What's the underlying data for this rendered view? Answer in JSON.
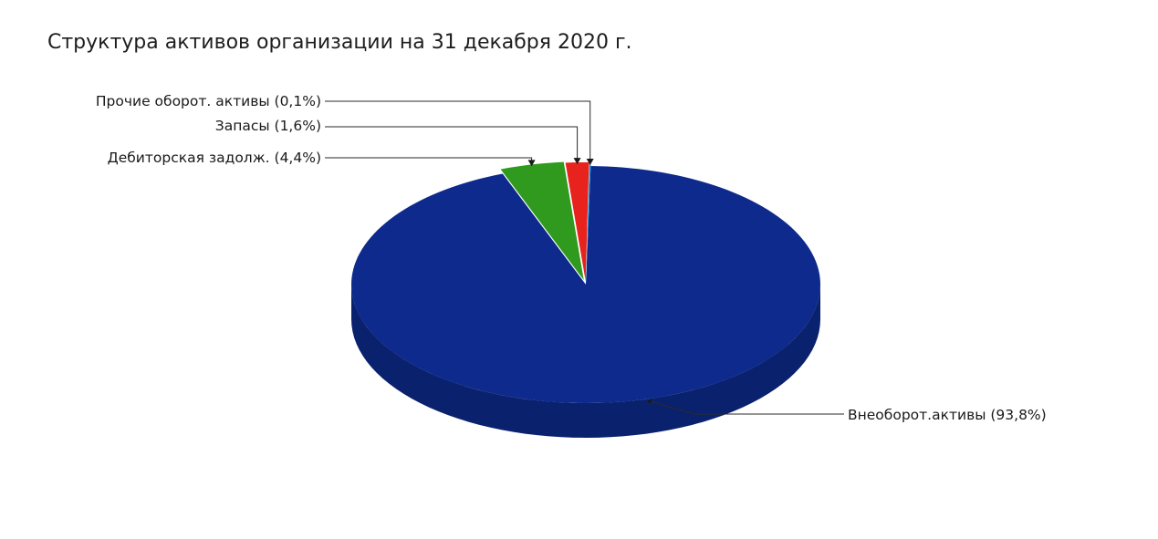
{
  "chart_data": {
    "type": "pie",
    "title": "Структура активов организации на 31 декабря 2020 г.",
    "slices": [
      {
        "name": "Внеоборот.активы",
        "label": "Внеоборот.активы (93,8%)",
        "value": 93.8,
        "color": "#0d2a8c"
      },
      {
        "name": "Дебиторская задолж.",
        "label": "Дебиторская задолж. (4,4%)",
        "value": 4.4,
        "color": "#2f9a1e"
      },
      {
        "name": "Запасы",
        "label": "Запасы (1,6%)",
        "value": 1.6,
        "color": "#e8221c"
      },
      {
        "name": "Прочие оборот. активы",
        "label": "Прочие оборот. активы (0,1%)",
        "value": 0.1,
        "color": "#1e8fd6"
      }
    ],
    "legend": "none",
    "grid": false
  }
}
